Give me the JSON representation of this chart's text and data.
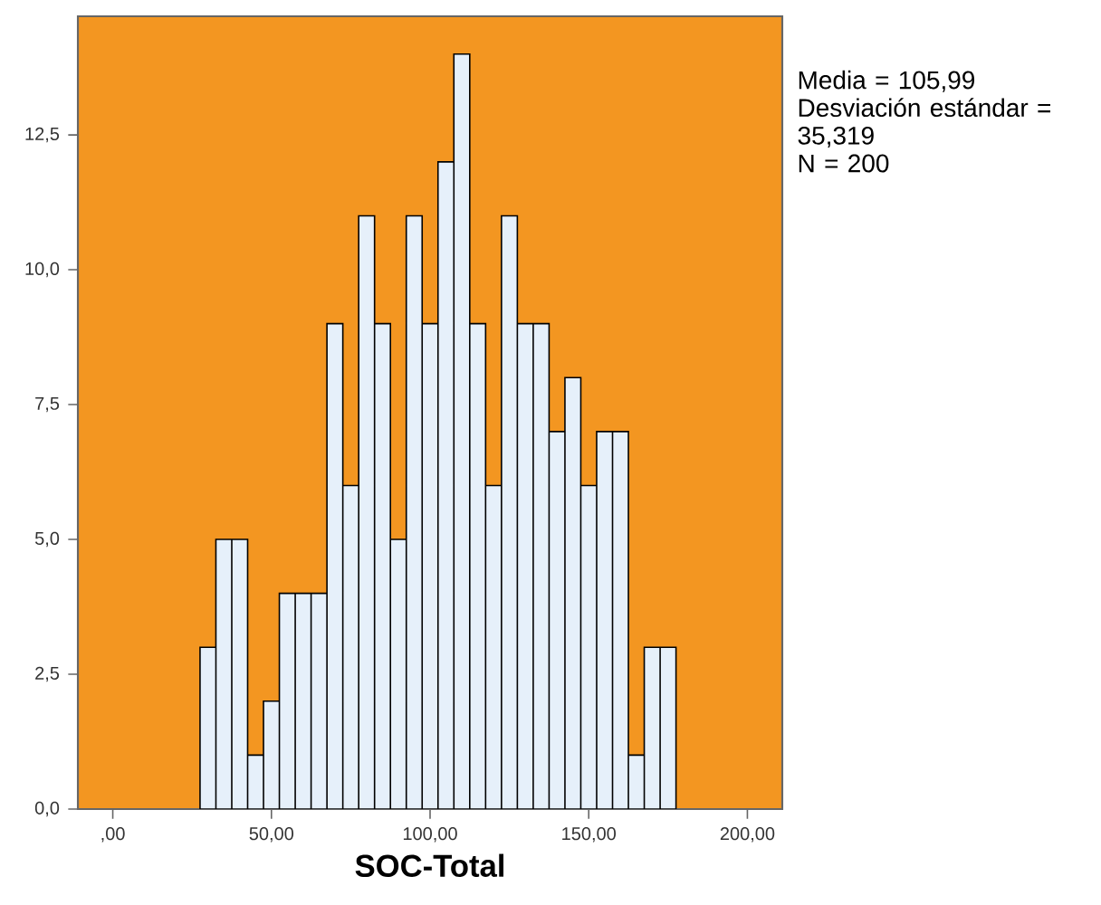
{
  "chart_data": {
    "type": "histogram",
    "xlabel": "SOC-Total",
    "bins": [
      27.5,
      32.5,
      37.5,
      42.5,
      47.5,
      52.5,
      57.5,
      62.5,
      67.5,
      72.5,
      77.5,
      82.5,
      87.5,
      92.5,
      97.5,
      102.5,
      107.5,
      112.5,
      117.5,
      122.5,
      127.5,
      132.5,
      137.5,
      142.5,
      147.5,
      152.5,
      157.5,
      162.5,
      167.5,
      172.5,
      177.5
    ],
    "values": [
      3,
      5,
      5,
      1,
      2,
      4,
      4,
      4,
      9,
      6,
      11,
      9,
      5,
      11,
      9,
      12,
      14,
      9,
      6,
      11,
      9,
      9,
      7,
      8,
      6,
      7,
      7,
      1,
      3,
      3
    ],
    "color": "#e6f0fa",
    "xlim": [
      -11,
      211
    ],
    "ylim": [
      0,
      14.7
    ],
    "xticks": [
      {
        "value": 0,
        "label": ",00"
      },
      {
        "value": 50,
        "label": "50,00"
      },
      {
        "value": 100,
        "label": "100,00"
      },
      {
        "value": 150,
        "label": "150,00"
      },
      {
        "value": 200,
        "label": "200,00"
      }
    ],
    "yticks": [
      {
        "value": 0,
        "label": "0,0"
      },
      {
        "value": 2.5,
        "label": "2,5"
      },
      {
        "value": 5,
        "label": "5,0"
      },
      {
        "value": 7.5,
        "label": "7,5"
      },
      {
        "value": 10,
        "label": "10,0"
      },
      {
        "value": 12.5,
        "label": "12,5"
      }
    ],
    "annotations": [
      "Media = 105,99",
      "Desviación estándar = 35,319",
      "N = 200"
    ]
  }
}
